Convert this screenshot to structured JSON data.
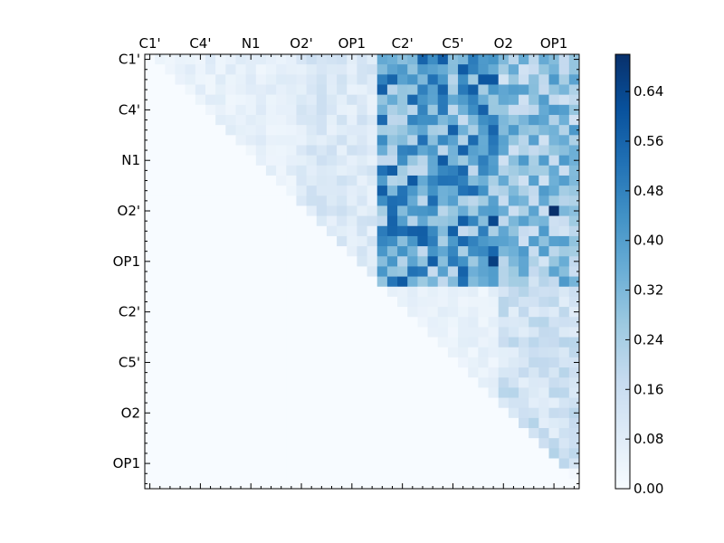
{
  "chart_data": {
    "type": "heatmap",
    "title": "",
    "xlabel": "",
    "ylabel": "",
    "n": 43,
    "tick_labels": [
      "C1'",
      "C4'",
      "N1",
      "O2'",
      "OP1",
      "C2'",
      "C5'",
      "O2",
      "OP1"
    ],
    "tick_indices": [
      0,
      5,
      10,
      15,
      20,
      25,
      30,
      35,
      40
    ],
    "x_ticks_position": "top",
    "y_ticks_position": "left",
    "colormap": "Blues",
    "vmin": 0.0,
    "vmax": 0.7,
    "colorbar_ticks": [
      "0.00",
      "0.08",
      "0.16",
      "0.24",
      "0.32",
      "0.40",
      "0.48",
      "0.56",
      "0.64"
    ],
    "colorbar_tick_values": [
      0.0,
      0.08,
      0.16,
      0.24,
      0.32,
      0.4,
      0.48,
      0.56,
      0.64
    ],
    "colorbar_location": "right",
    "grid": false,
    "nonzero_region": "upper triangle (column > row)",
    "matrix_values": {
      "column_blocks": [
        {
          "cols": [
            0,
            14
          ],
          "row_range": [
            0,
            14
          ],
          "typical": 0.06
        },
        {
          "cols": [
            15,
            22
          ],
          "row_range": [
            0,
            22
          ],
          "typical": 0.1
        },
        {
          "cols": [
            23,
            34
          ],
          "row_range": [
            0,
            22
          ],
          "typical": 0.38
        },
        {
          "cols": [
            23,
            34
          ],
          "row_range": [
            23,
            36
          ],
          "typical": 0.05
        },
        {
          "cols": [
            35,
            42
          ],
          "row_range": [
            0,
            22
          ],
          "typical": 0.27
        },
        {
          "cols": [
            35,
            42
          ],
          "row_range": [
            23,
            40
          ],
          "typical": 0.14
        }
      ],
      "maxima": [
        {
          "row": 15,
          "col": 40,
          "value": 0.7
        },
        {
          "row": 20,
          "col": 34,
          "value": 0.66
        },
        {
          "row": 16,
          "col": 34,
          "value": 0.64
        },
        {
          "row": 2,
          "col": 33,
          "value": 0.6
        },
        {
          "row": 2,
          "col": 34,
          "value": 0.6
        }
      ]
    }
  },
  "colors": {
    "background": "#ffffff",
    "axes_edge": "#000000",
    "cmap_low": "#f7fbff",
    "cmap_high": "#08306b"
  }
}
